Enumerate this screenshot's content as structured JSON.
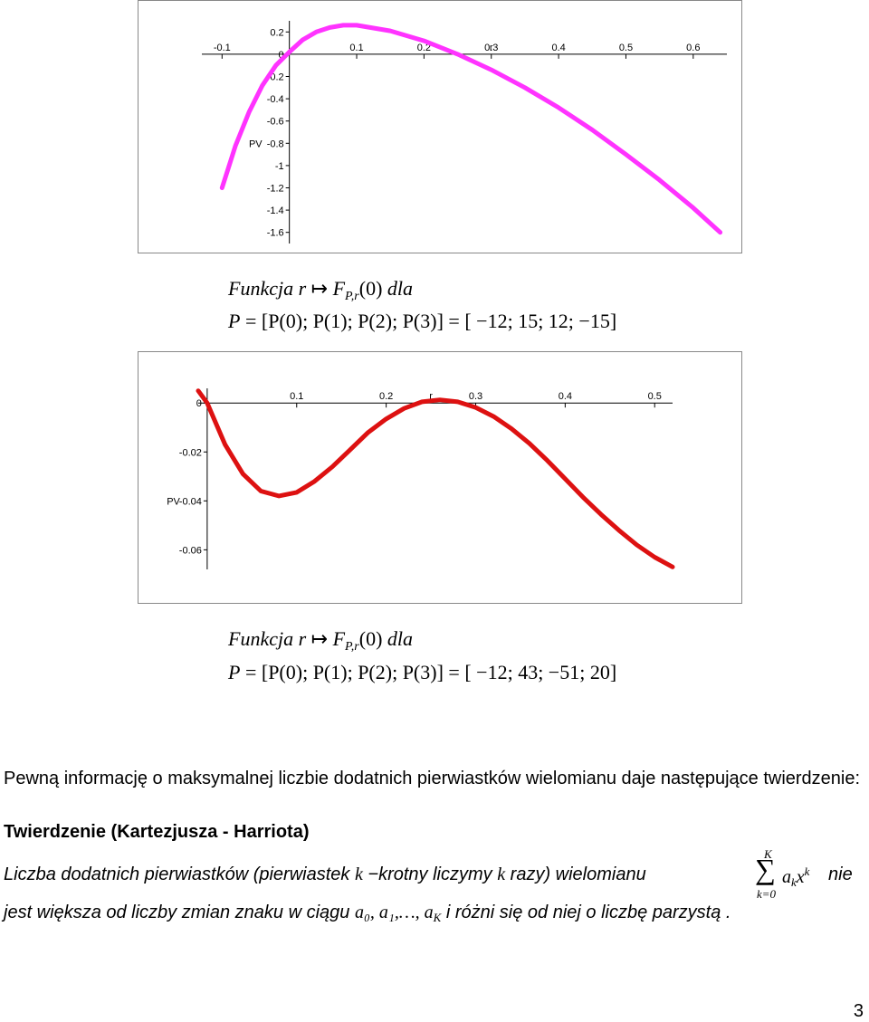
{
  "chart_data": [
    {
      "type": "line",
      "color": "#ff33ff",
      "xlim": [
        -0.13,
        0.65
      ],
      "ylim": [
        -1.7,
        0.3
      ],
      "x_ticks": [
        "-0.1",
        "0.1",
        "0.2",
        "0.3",
        "0.4",
        "0.5",
        "0.6"
      ],
      "y_ticks": [
        "0.2",
        "0",
        "-0.2",
        "-0.4",
        "-0.6",
        "-0.8",
        "-1",
        "-1.2",
        "-1.4",
        "-1.6"
      ],
      "xlabel": "r",
      "ylabel": "PV",
      "x": [
        -0.1,
        -0.08,
        -0.06,
        -0.04,
        -0.02,
        0.0,
        0.02,
        0.04,
        0.06,
        0.08,
        0.1,
        0.15,
        0.2,
        0.25,
        0.3,
        0.35,
        0.4,
        0.45,
        0.5,
        0.55,
        0.6,
        0.64
      ],
      "y": [
        -1.2,
        -0.82,
        -0.52,
        -0.28,
        -0.1,
        0.02,
        0.13,
        0.2,
        0.24,
        0.26,
        0.26,
        0.21,
        0.12,
        0.0,
        -0.14,
        -0.3,
        -0.48,
        -0.68,
        -0.9,
        -1.13,
        -1.38,
        -1.6
      ]
    },
    {
      "type": "line",
      "color": "#dd1111",
      "xlim": [
        -0.01,
        0.52
      ],
      "ylim": [
        -0.068,
        0.006
      ],
      "x_ticks": [
        "0.1",
        "0.2",
        "0.3",
        "0.4",
        "0.5"
      ],
      "y_ticks": [
        "0",
        "-0.02",
        "-0.04",
        "-0.06"
      ],
      "xlabel": "r",
      "ylabel": "PV",
      "x": [
        -0.01,
        0.0,
        0.02,
        0.04,
        0.06,
        0.08,
        0.1,
        0.12,
        0.14,
        0.16,
        0.18,
        0.2,
        0.22,
        0.24,
        0.26,
        0.28,
        0.3,
        0.32,
        0.34,
        0.36,
        0.38,
        0.4,
        0.42,
        0.44,
        0.46,
        0.48,
        0.5,
        0.52
      ],
      "y": [
        0.005,
        0.0,
        -0.017,
        -0.029,
        -0.036,
        -0.038,
        -0.0365,
        -0.032,
        -0.026,
        -0.019,
        -0.012,
        -0.0065,
        -0.0022,
        0.0005,
        0.0013,
        0.0005,
        -0.0018,
        -0.0055,
        -0.0105,
        -0.0165,
        -0.0235,
        -0.031,
        -0.0385,
        -0.0455,
        -0.052,
        -0.058,
        -0.063,
        -0.067
      ]
    }
  ],
  "formula1": {
    "line1": {
      "word": "Funkcja",
      "var": "r",
      "arrow": "↦",
      "F": "F",
      "sub": "P,r",
      "arg": "(0)",
      "dla": "dla"
    },
    "line2": {
      "lhs": "P",
      "eq": "=",
      "vector": "[P(0); P(1); P(2); P(3)]",
      "eq2": "=",
      "values": "[ −12; 15; 12; −15]"
    }
  },
  "formula2": {
    "line1": {
      "word": "Funkcja",
      "var": "r",
      "arrow": "↦",
      "F": "F",
      "sub": "P,r",
      "arg": "(0)",
      "dla": "dla"
    },
    "line2": {
      "lhs": "P",
      "eq": "=",
      "vector": "[P(0); P(1); P(2); P(3)]",
      "eq2": "=",
      "values": "[ −12; 43; −51; 20]"
    }
  },
  "text": {
    "intro": "Pewną informację o maksymalnej liczbie dodatnich pierwiastków wielomianu daje następujące twierdzenie:",
    "theorem_title": "Twierdzenie (Kartezjusza - Harriota)",
    "t1": "Liczba dodatnich pierwiastków (pierwiastek ",
    "t1_k": "k",
    "t1_b": " −krotny liczymy ",
    "t1_k2": "k",
    "t1_c": " razy) wielomianu",
    "sum_top": "K",
    "sum_symbol": "∑",
    "sum_bottom": "k=0",
    "sum_term": "a",
    "sum_term_sub": "k",
    "sum_x": "x",
    "sum_sup": "k",
    "t1_end": "nie",
    "t2": "jest większa od liczby zmian znaku w ciągu ",
    "t2_seq": "a₀, a₁,…, a",
    "t2_seq_sub": "K",
    "t2_end": " i różni się od niej o liczbę parzystą ."
  },
  "page_number": "3"
}
